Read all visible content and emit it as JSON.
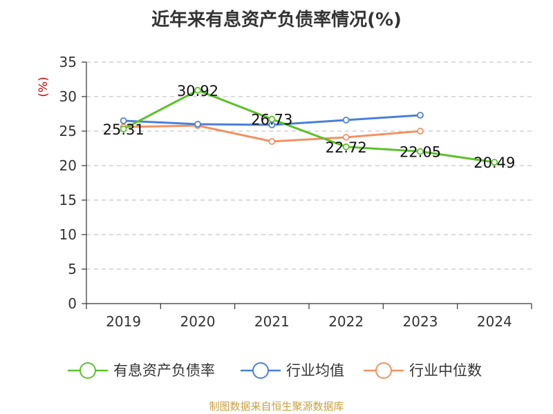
{
  "chart_data": {
    "type": "line",
    "title": "近年来有息资产负债率情况(%)",
    "ylabel": "(%)",
    "xlabel": "",
    "categories": [
      "2019",
      "2020",
      "2021",
      "2022",
      "2023",
      "2024"
    ],
    "ylim": [
      0,
      35
    ],
    "yticks": [
      0,
      5,
      10,
      15,
      20,
      25,
      30,
      35
    ],
    "grid": "horizontal-dashed",
    "legend_position": "bottom",
    "series": [
      {
        "name": "有息资产负债率",
        "color": "#5cc12a",
        "values": [
          25.31,
          30.92,
          26.73,
          22.72,
          22.05,
          20.49
        ],
        "labels": [
          "25.31",
          "30.92",
          "26.73",
          "22.72",
          "22.05",
          "20.49"
        ],
        "show_labels": true
      },
      {
        "name": "行业均值",
        "color": "#4a7fd8",
        "values": [
          26.5,
          26.0,
          25.9,
          26.6,
          27.3,
          null
        ],
        "show_labels": false
      },
      {
        "name": "行业中位数",
        "color": "#f39162",
        "values": [
          25.6,
          25.8,
          23.5,
          24.1,
          25.0,
          null
        ],
        "show_labels": false
      }
    ]
  },
  "source_note": "制图数据来自恒生聚源数据库"
}
